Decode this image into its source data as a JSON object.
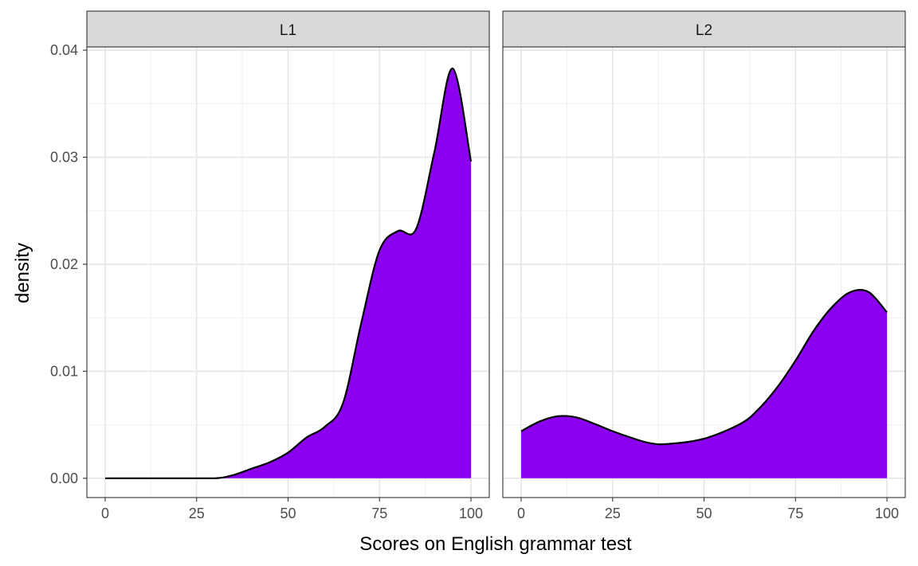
{
  "chart_data": {
    "type": "area",
    "title": "",
    "xlabel": "Scores on English grammar test",
    "ylabel": "density",
    "xlim": [
      -5,
      105
    ],
    "ylim": [
      -0.0018,
      0.0403
    ],
    "x_ticks": [
      0,
      25,
      50,
      75,
      100
    ],
    "x_tick_labels": [
      "0",
      "25",
      "50",
      "75",
      "100"
    ],
    "y_ticks": [
      0,
      0.01,
      0.02,
      0.03,
      0.04
    ],
    "y_tick_labels": [
      "0.00",
      "0.01",
      "0.02",
      "0.03",
      "0.04"
    ],
    "grid": true,
    "fill_color": "#8B00EE",
    "line_color": "#000000",
    "panels": [
      {
        "label": "L1",
        "x": [
          0,
          10,
          20,
          30,
          35,
          40,
          45,
          50,
          55,
          60,
          65,
          70,
          75,
          80,
          85,
          90,
          95,
          100
        ],
        "y": [
          0,
          0,
          0,
          0,
          0.0003,
          0.0009,
          0.0015,
          0.0024,
          0.0038,
          0.0048,
          0.007,
          0.0145,
          0.0213,
          0.0231,
          0.0233,
          0.0305,
          0.0383,
          0.0296
        ]
      },
      {
        "label": "L2",
        "x": [
          0,
          5,
          10,
          15,
          20,
          25,
          30,
          35,
          40,
          50,
          60,
          65,
          70,
          75,
          80,
          85,
          90,
          95,
          100
        ],
        "y": [
          0.0044,
          0.0053,
          0.0058,
          0.0057,
          0.0051,
          0.0044,
          0.0038,
          0.0033,
          0.0032,
          0.0037,
          0.0051,
          0.0065,
          0.0085,
          0.011,
          0.0138,
          0.016,
          0.0174,
          0.0174,
          0.0155
        ]
      }
    ]
  }
}
